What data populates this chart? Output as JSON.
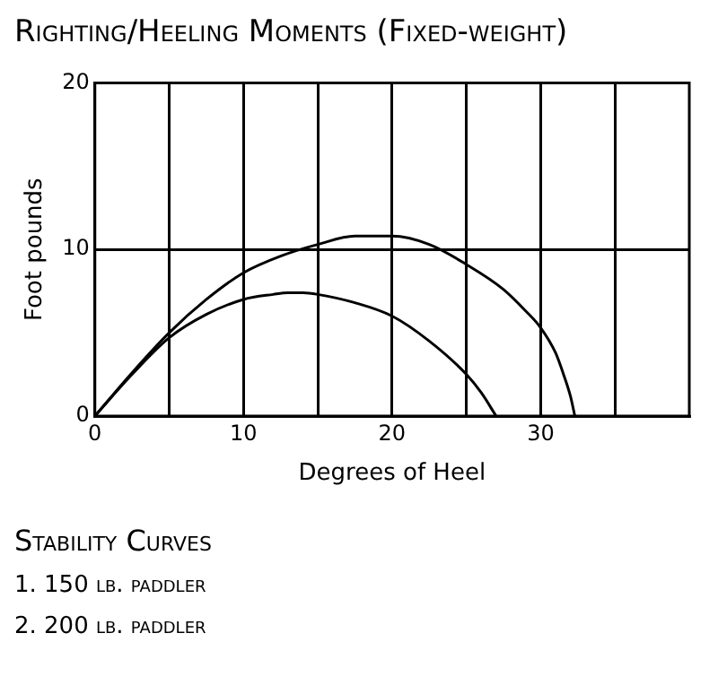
{
  "chart_data": {
    "type": "line",
    "title": "Righting/Heeling Moments (Fixed-weight)",
    "xlabel": "Degrees of Heel",
    "ylabel": "Foot pounds",
    "xlim": [
      0,
      40
    ],
    "xticks": [
      0,
      {
        "value": 5,
        "label": null
      },
      10,
      {
        "value": 15,
        "label": null
      },
      20,
      {
        "value": 25,
        "label": null
      },
      30,
      {
        "value": 35,
        "label": null
      }
    ],
    "ylim": [
      0,
      20
    ],
    "yticks": [
      0,
      10,
      20
    ],
    "grid": true,
    "legend": false,
    "marker": "none",
    "line_style": "solid",
    "series": [
      {
        "color": "#000000",
        "x": [
          0,
          2.5,
          5,
          7.5,
          10,
          12,
          13,
          14,
          15,
          17.5,
          20,
          22.5,
          25,
          26,
          27
        ],
        "values": [
          0,
          2.5,
          4.7,
          6.1,
          7.0,
          7.3,
          7.4,
          7.4,
          7.3,
          6.8,
          6.0,
          4.5,
          2.5,
          1.4,
          0
        ]
      },
      {
        "color": "#000000",
        "x": [
          0,
          2.5,
          5,
          7.5,
          10,
          12.5,
          15,
          17.5,
          20,
          22.5,
          25,
          27.5,
          29,
          30,
          31,
          31.5,
          32,
          32.3
        ],
        "values": [
          0,
          2.6,
          5.0,
          7.0,
          8.6,
          9.6,
          10.3,
          10.8,
          10.8,
          10.3,
          9.1,
          7.6,
          6.3,
          5.3,
          3.8,
          2.6,
          1.2,
          0
        ]
      }
    ],
    "annotations": [
      "Stability Curves",
      "1. 150 lb. paddler",
      "2. 200 lb. paddler"
    ]
  }
}
